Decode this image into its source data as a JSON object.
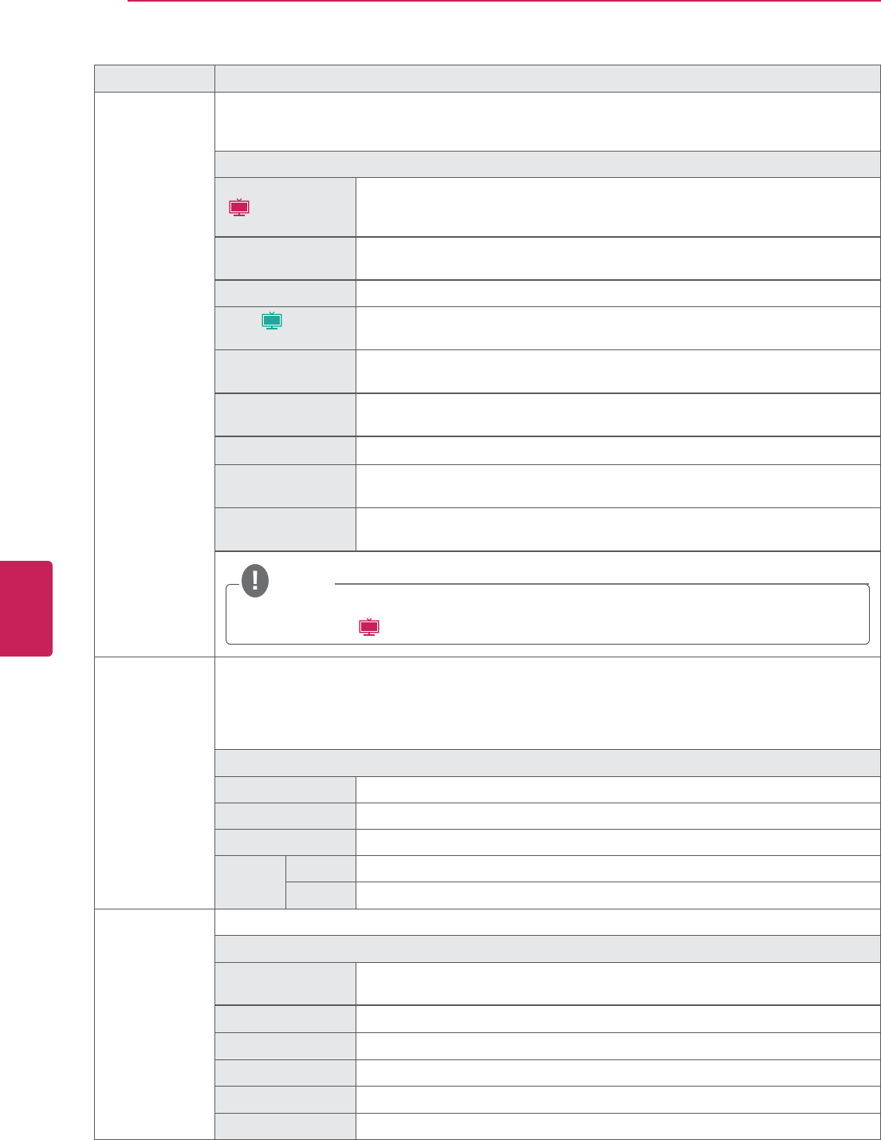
{
  "colors": {
    "accent": "#c8215a",
    "teal": "#1aa99a",
    "header_gray": "#e6e7e9",
    "border": "#5a5a5a",
    "note_icon": "#6d6e70"
  },
  "icons": {
    "tv_pink": "tv-icon",
    "tv_teal": "tv-icon",
    "note": "exclamation-icon"
  }
}
